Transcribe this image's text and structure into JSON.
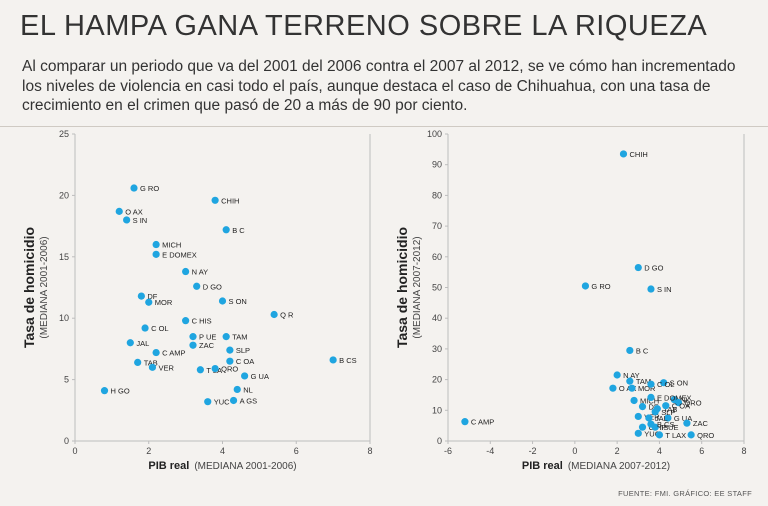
{
  "title": "EL HAMPA GANA TERRENO SOBRE LA RIQUEZA",
  "subtitle": "Al comparar un periodo que va del 2001 del 2006 contra el 2007 al 2012, se ve cómo han incrementado los niveles de violencia en casi todo el país,  aunque destaca el caso de Chihuahua, con una tasa de crecimiento en el crimen que pasó de 20 a más de 90 por ciento.",
  "source": "FUENTE: FMI. GRÁFICO: EE STAFF",
  "colors": {
    "point": "#1fa5e0",
    "axis": "#bdbdbd",
    "background": "#f4f2ef"
  },
  "chart_data": [
    {
      "type": "scatter",
      "ylabel": "Tasa de homicidio",
      "ylabel_sub": "(MEDIANA 2001-2006)",
      "xlabel": "PIB real",
      "xlabel_sub": "(MEDIANA 2001-2006)",
      "xlim": [
        0,
        8
      ],
      "ylim": [
        0,
        25
      ],
      "xticks": [
        0,
        2,
        4,
        6,
        8
      ],
      "yticks": [
        0,
        5,
        10,
        15,
        20,
        25
      ],
      "points": [
        {
          "label": "G RO",
          "x": 1.6,
          "y": 20.6
        },
        {
          "label": "CHIH",
          "x": 3.8,
          "y": 19.6
        },
        {
          "label": "O AX",
          "x": 1.2,
          "y": 18.7
        },
        {
          "label": "S IN",
          "x": 1.4,
          "y": 18.0
        },
        {
          "label": "B C",
          "x": 4.1,
          "y": 17.2
        },
        {
          "label": "MICH",
          "x": 2.2,
          "y": 16.0
        },
        {
          "label": "E DOMEX",
          "x": 2.2,
          "y": 15.2
        },
        {
          "label": "N AY",
          "x": 3.0,
          "y": 13.8
        },
        {
          "label": "D GO",
          "x": 3.3,
          "y": 12.6
        },
        {
          "label": "DF",
          "x": 1.8,
          "y": 11.8
        },
        {
          "label": "MOR",
          "x": 2.0,
          "y": 11.3
        },
        {
          "label": "S ON",
          "x": 4.0,
          "y": 11.4
        },
        {
          "label": "Q R",
          "x": 5.4,
          "y": 10.3
        },
        {
          "label": "C HIS",
          "x": 3.0,
          "y": 9.8
        },
        {
          "label": "C OL",
          "x": 1.9,
          "y": 9.2
        },
        {
          "label": "P UE",
          "x": 3.2,
          "y": 8.5
        },
        {
          "label": "TAM",
          "x": 4.1,
          "y": 8.5
        },
        {
          "label": "JAL",
          "x": 1.5,
          "y": 8.0
        },
        {
          "label": "ZAC",
          "x": 3.2,
          "y": 7.8
        },
        {
          "label": "SLP",
          "x": 4.2,
          "y": 7.4
        },
        {
          "label": "C AMP",
          "x": 2.2,
          "y": 7.2
        },
        {
          "label": "B CS",
          "x": 7.0,
          "y": 6.6
        },
        {
          "label": "TAB",
          "x": 1.7,
          "y": 6.4
        },
        {
          "label": "C OA",
          "x": 4.2,
          "y": 6.5
        },
        {
          "label": "VER",
          "x": 2.1,
          "y": 6.0
        },
        {
          "label": "T LA",
          "x": 3.4,
          "y": 5.8
        },
        {
          "label": "QRO",
          "x": 3.8,
          "y": 5.9
        },
        {
          "label": "G UA",
          "x": 4.6,
          "y": 5.3
        },
        {
          "label": "NL",
          "x": 4.4,
          "y": 4.2
        },
        {
          "label": "H GO",
          "x": 0.8,
          "y": 4.1
        },
        {
          "label": "A GS",
          "x": 4.3,
          "y": 3.3
        },
        {
          "label": "YUC",
          "x": 3.6,
          "y": 3.2
        }
      ]
    },
    {
      "type": "scatter",
      "ylabel": "Tasa de homicidio",
      "ylabel_sub": "(MEDIANA 2007-2012)",
      "xlabel": "PIB real",
      "xlabel_sub": "(MEDIANA 2007-2012)",
      "xlim": [
        -6,
        8
      ],
      "ylim": [
        0,
        100
      ],
      "xticks": [
        -6,
        -4,
        -2,
        0,
        2,
        4,
        6,
        8
      ],
      "yticks": [
        0,
        10,
        20,
        30,
        40,
        50,
        60,
        70,
        80,
        90,
        100
      ],
      "points": [
        {
          "label": "CHIH",
          "x": 2.3,
          "y": 93.5
        },
        {
          "label": "D GO",
          "x": 3.0,
          "y": 56.5
        },
        {
          "label": "G RO",
          "x": 0.5,
          "y": 50.5
        },
        {
          "label": "S IN",
          "x": 3.6,
          "y": 49.5
        },
        {
          "label": "B C",
          "x": 2.6,
          "y": 29.5
        },
        {
          "label": "N AY",
          "x": 2.0,
          "y": 21.5
        },
        {
          "label": "TAM",
          "x": 2.6,
          "y": 19.5
        },
        {
          "label": "S ON",
          "x": 4.2,
          "y": 19.0
        },
        {
          "label": "O AX",
          "x": 1.8,
          "y": 17.2
        },
        {
          "label": "MOR",
          "x": 2.7,
          "y": 17.2
        },
        {
          "label": "C OL",
          "x": 3.6,
          "y": 18.5
        },
        {
          "label": "NL",
          "x": 4.7,
          "y": 13.5
        },
        {
          "label": "MICH",
          "x": 2.8,
          "y": 13.2
        },
        {
          "label": "E DOMEX",
          "x": 3.6,
          "y": 14.2
        },
        {
          "label": "QRO",
          "x": 4.9,
          "y": 12.5
        },
        {
          "label": "DF",
          "x": 3.2,
          "y": 11.2
        },
        {
          "label": "TAB",
          "x": 3.9,
          "y": 10.5
        },
        {
          "label": "C OA",
          "x": 4.3,
          "y": 11.5
        },
        {
          "label": "VER",
          "x": 3.0,
          "y": 8.0
        },
        {
          "label": "G UA",
          "x": 4.4,
          "y": 7.5
        },
        {
          "label": "JAL",
          "x": 3.5,
          "y": 7.5
        },
        {
          "label": "SLP",
          "x": 3.8,
          "y": 9.5
        },
        {
          "label": "C AMP",
          "x": -5.2,
          "y": 6.3
        },
        {
          "label": "ZAC",
          "x": 5.3,
          "y": 5.8
        },
        {
          "label": "C HIS",
          "x": 3.2,
          "y": 4.5
        },
        {
          "label": "P UE",
          "x": 3.8,
          "y": 4.5
        },
        {
          "label": "B CS",
          "x": 3.6,
          "y": 5.5
        },
        {
          "label": "YUC",
          "x": 3.0,
          "y": 2.5
        },
        {
          "label": "T LAX",
          "x": 4.0,
          "y": 2.0
        },
        {
          "label": "QRO",
          "x": 5.5,
          "y": 2.0
        }
      ]
    }
  ]
}
